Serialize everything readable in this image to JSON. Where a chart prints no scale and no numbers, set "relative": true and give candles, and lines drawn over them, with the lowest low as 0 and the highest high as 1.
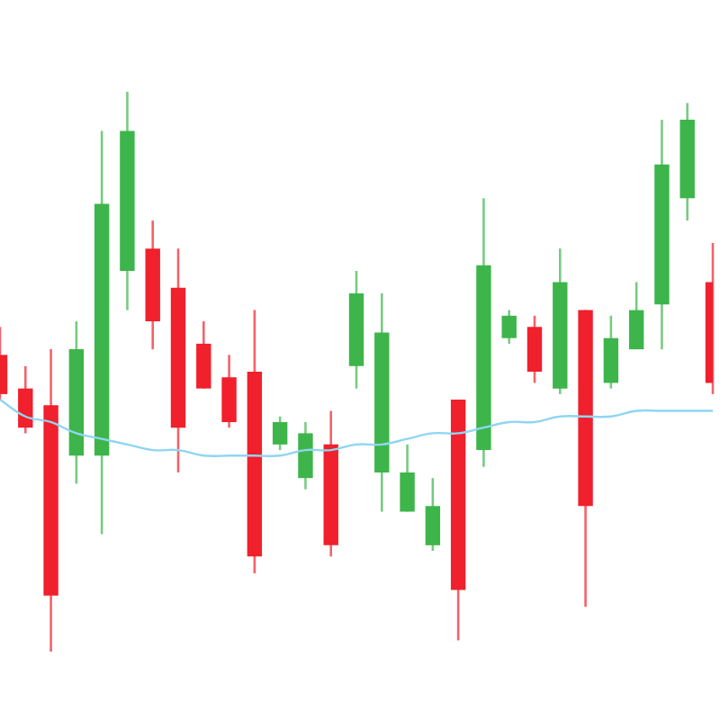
{
  "chart_data": {
    "type": "candlestick",
    "relative": true,
    "categories": [
      null,
      null,
      null,
      null,
      null,
      null,
      null,
      null,
      null,
      null,
      null,
      null,
      null,
      null,
      null,
      null,
      null,
      null,
      null,
      null,
      null,
      null,
      null,
      null,
      null,
      null,
      null,
      null,
      null
    ],
    "ohlc": [
      [
        0.53,
        0.58,
        0.45,
        0.46
      ],
      [
        0.47,
        0.51,
        0.39,
        0.4
      ],
      [
        0.44,
        0.54,
        0,
        0.1
      ],
      [
        0.35,
        0.59,
        0.3,
        0.54
      ],
      [
        0.35,
        0.93,
        0.21,
        0.8
      ],
      [
        0.68,
        1,
        0.61,
        0.93
      ],
      [
        0.72,
        0.77,
        0.54,
        0.59
      ],
      [
        0.65,
        0.72,
        0.32,
        0.4
      ],
      [
        0.55,
        0.59,
        0.47,
        0.47
      ],
      [
        0.49,
        0.53,
        0.4,
        0.41
      ],
      [
        0.5,
        0.61,
        0.14,
        0.17
      ],
      [
        0.37,
        0.42,
        0.36,
        0.41
      ],
      [
        0.31,
        0.41,
        0.29,
        0.39
      ],
      [
        0.37,
        0.43,
        0.17,
        0.19
      ],
      [
        0.51,
        0.68,
        0.47,
        0.64
      ],
      [
        0.32,
        0.64,
        0.25,
        0.57
      ],
      [
        0.25,
        0.37,
        0.25,
        0.32
      ],
      [
        0.19,
        0.31,
        0.18,
        0.26
      ],
      [
        0.45,
        0.45,
        0.02,
        0.11
      ],
      [
        0.36,
        0.81,
        0.33,
        0.69
      ],
      [
        0.56,
        0.61,
        0.55,
        0.6
      ],
      [
        0.58,
        0.6,
        0.48,
        0.5
      ],
      [
        0.47,
        0.72,
        0.46,
        0.66
      ],
      [
        0.61,
        0.61,
        0.08,
        0.26
      ],
      [
        0.48,
        0.6,
        0.47,
        0.56
      ],
      [
        0.54,
        0.66,
        0.54,
        0.61
      ],
      [
        0.62,
        0.95,
        0.54,
        0.87
      ],
      [
        0.81,
        0.98,
        0.77,
        0.95
      ],
      [
        0.66,
        0.73,
        0.46,
        0.48
      ]
    ],
    "colors": [
      "#f0202c",
      "#f0202c",
      "#f0202c",
      "#3db54a",
      "#3db54a",
      "#3db54a",
      "#f0202c",
      "#f0202c",
      "#f0202c",
      "#f0202c",
      "#f0202c",
      "#3db54a",
      "#3db54a",
      "#f0202c",
      "#3db54a",
      "#3db54a",
      "#3db54a",
      "#3db54a",
      "#f0202c",
      "#3db54a",
      "#3db54a",
      "#f0202c",
      "#3db54a",
      "#f0202c",
      "#3db54a",
      "#3db54a",
      "#3db54a",
      "#3db54a",
      "#f0202c"
    ],
    "series": [
      {
        "type": "line",
        "color": "#8fd6f2",
        "values": [
          0.45,
          0.42,
          0.41,
          0.39,
          0.38,
          0.37,
          0.36,
          0.36,
          0.35,
          0.35,
          0.35,
          0.35,
          0.36,
          0.36,
          0.37,
          0.37,
          0.38,
          0.39,
          0.39,
          0.4,
          0.41,
          0.41,
          0.42,
          0.42,
          0.42,
          0.43,
          0.43,
          0.43,
          0.43
        ]
      }
    ]
  }
}
